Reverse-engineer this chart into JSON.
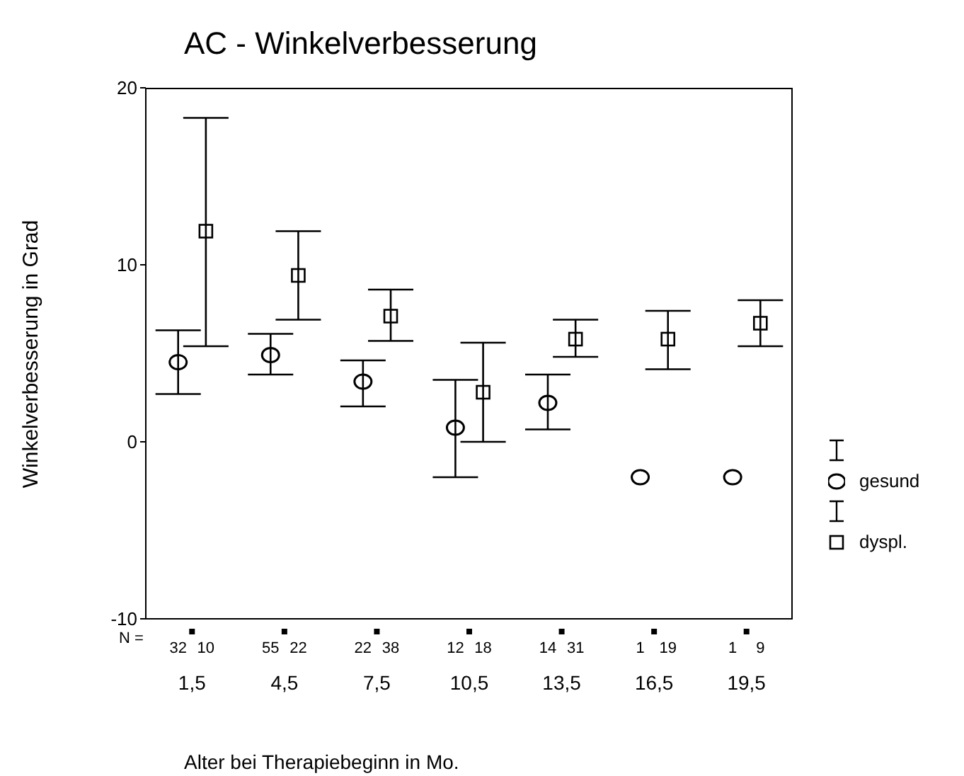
{
  "chart_data": {
    "type": "scatter",
    "title": "AC - Winkelverbesserung",
    "xlabel": "Alter bei Therapiebeginn in Mo.",
    "ylabel": "Winkelverbesserung in Grad",
    "categories": [
      "1,5",
      "4,5",
      "7,5",
      "10,5",
      "13,5",
      "16,5",
      "19,5"
    ],
    "ylim": [
      -10,
      20
    ],
    "yticks": [
      -10,
      0,
      10,
      20
    ],
    "legend": "right",
    "series": [
      {
        "name": "gesund",
        "color": "#000000",
        "marker": "circle",
        "values": [
          4.5,
          4.9,
          3.4,
          0.8,
          2.2,
          -2,
          -2
        ],
        "errors": [
          [
            2.7,
            6.3
          ],
          [
            3.8,
            6.1
          ],
          [
            2.0,
            4.6
          ],
          [
            -2.0,
            3.5
          ],
          [
            0.7,
            3.8
          ],
          null,
          null
        ]
      },
      {
        "name": "dyspl.",
        "color": "#000000",
        "marker": "square",
        "values": [
          11.9,
          9.4,
          7.1,
          2.8,
          5.8,
          5.8,
          6.7
        ],
        "errors": [
          [
            5.4,
            18.3
          ],
          [
            6.9,
            11.9
          ],
          [
            5.7,
            8.6
          ],
          [
            0,
            5.6
          ],
          [
            4.8,
            6.9
          ],
          [
            4.1,
            7.4
          ],
          [
            5.4,
            8.0
          ]
        ]
      }
    ],
    "annotations": [
      "N =",
      "32",
      "10",
      "55",
      "22",
      "22",
      "38",
      "12",
      "18",
      "14",
      "31",
      "1",
      "19",
      "1",
      "9"
    ]
  }
}
